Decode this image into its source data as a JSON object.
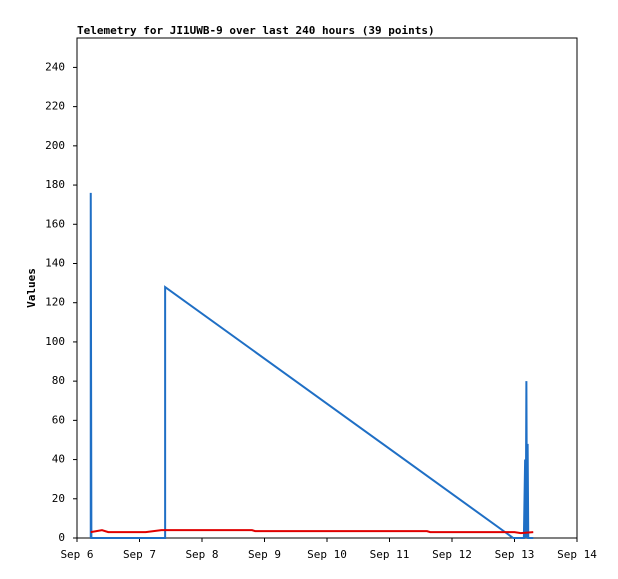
{
  "chart_data": {
    "type": "line",
    "title": "Telemetry for JI1UWB-9 over last 240 hours (39 points)",
    "y_label": "Values",
    "xlim": [
      0,
      8
    ],
    "xticks": [
      {
        "value": 0,
        "label": "Sep 6"
      },
      {
        "value": 1,
        "label": "Sep 7"
      },
      {
        "value": 2,
        "label": "Sep 8"
      },
      {
        "value": 3,
        "label": "Sep 9"
      },
      {
        "value": 4,
        "label": "Sep 10"
      },
      {
        "value": 5,
        "label": "Sep 11"
      },
      {
        "value": 6,
        "label": "Sep 12"
      },
      {
        "value": 7,
        "label": "Sep 13"
      },
      {
        "value": 8,
        "label": "Sep 14"
      }
    ],
    "ylim": [
      0,
      255
    ],
    "yticks": [
      0,
      20,
      40,
      60,
      80,
      100,
      120,
      140,
      160,
      180,
      200,
      220,
      240
    ],
    "series": [
      {
        "color": "#1f6fc5",
        "x": [
          0.22,
          0.22,
          0.23,
          1.41,
          1.41,
          6.98,
          7.15,
          7.17,
          7.18,
          7.19,
          7.2,
          7.21,
          7.22,
          7.23,
          7.3
        ],
        "values": [
          0,
          176,
          0,
          0,
          128,
          0,
          0,
          40,
          0,
          80,
          0,
          48,
          0,
          0,
          0
        ]
      },
      {
        "color": "#e00000",
        "x": [
          0.22,
          0.4,
          0.5,
          1.1,
          1.35,
          1.41,
          2.8,
          2.85,
          5.6,
          5.65,
          7.0,
          7.1,
          7.3
        ],
        "values": [
          3,
          4,
          3,
          3,
          4,
          4,
          4,
          3.5,
          3.5,
          3,
          3,
          2.5,
          3
        ]
      }
    ]
  }
}
